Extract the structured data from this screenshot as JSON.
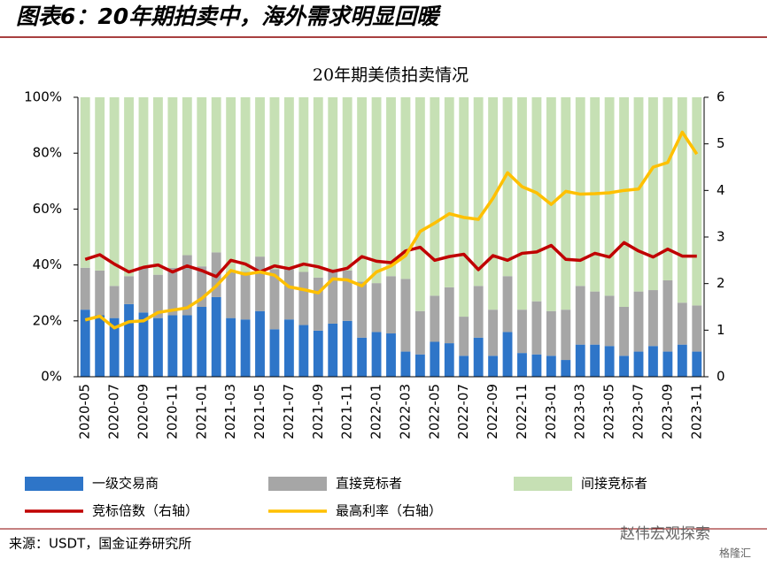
{
  "header": {
    "title": "图表6：20年期拍卖中，海外需求明显回暖"
  },
  "chart_data": {
    "type": "bar",
    "stacked": true,
    "title": "20年期美债拍卖情况",
    "categories": [
      "2020-05",
      null,
      "2020-07",
      null,
      "2020-09",
      null,
      "2020-11",
      null,
      "2021-01",
      null,
      "2021-03",
      null,
      "2021-05",
      null,
      "2021-07",
      null,
      "2021-09",
      null,
      "2021-11",
      null,
      "2022-01",
      null,
      "2022-03",
      null,
      "2022-05",
      null,
      "2022-07",
      null,
      "2022-09",
      null,
      "2022-11",
      null,
      "2023-01",
      null,
      "2023-03",
      null,
      "2023-05",
      null,
      "2023-07",
      null,
      "2023-09",
      null,
      "2023-11"
    ],
    "series": [
      {
        "name": "一级交易商",
        "color": "#2e75c8",
        "values": [
          24,
          22,
          21,
          26,
          23,
          21,
          22,
          22,
          25,
          28.5,
          21,
          20.5,
          23.5,
          17,
          20.5,
          18.5,
          16.5,
          19,
          20,
          14,
          16,
          15.5,
          9,
          8,
          12.5,
          12,
          7.5,
          14,
          7.5,
          16,
          8.5,
          8,
          7.5,
          6,
          11.5,
          11.5,
          11,
          7.5,
          9,
          11,
          9,
          11.5,
          9
        ]
      },
      {
        "name": "直接竞标者",
        "color": "#a6a6a6",
        "values": [
          15,
          16,
          11.5,
          10,
          16.5,
          15.5,
          17,
          21.5,
          14.5,
          16,
          16.5,
          17,
          19.5,
          21.5,
          18,
          19,
          19,
          19.5,
          18,
          20,
          17.5,
          20.5,
          26,
          15.5,
          16.5,
          20,
          14,
          18.5,
          16.5,
          20,
          15.5,
          19,
          16,
          18,
          21,
          19,
          18,
          17.5,
          21.5,
          20,
          25.5,
          15,
          16.5
        ]
      },
      {
        "name": "间接竞标者",
        "color": "#c6e0b4",
        "values": [
          61,
          62,
          67.5,
          64,
          60.5,
          63.5,
          61,
          56.5,
          60.5,
          55.5,
          62.5,
          62.5,
          57,
          61.5,
          61.5,
          62.5,
          64.5,
          61.5,
          62,
          66,
          66.5,
          64,
          65,
          76.5,
          71,
          68,
          78.5,
          67.5,
          76,
          64,
          76,
          73,
          76.5,
          76,
          67.5,
          69.5,
          71,
          75,
          69.5,
          69,
          65.5,
          73.5,
          74.5
        ]
      },
      {
        "name": "竞标倍数（右轴）",
        "type": "line",
        "axis": "y2",
        "color": "#c00000",
        "values": [
          2.52,
          2.62,
          2.42,
          2.25,
          2.35,
          2.4,
          2.25,
          2.38,
          2.28,
          2.15,
          2.5,
          2.42,
          2.25,
          2.38,
          2.32,
          2.42,
          2.36,
          2.26,
          2.33,
          2.58,
          2.48,
          2.45,
          2.7,
          2.78,
          2.5,
          2.58,
          2.63,
          2.3,
          2.6,
          2.5,
          2.65,
          2.68,
          2.82,
          2.52,
          2.5,
          2.65,
          2.57,
          2.88,
          2.7,
          2.57,
          2.74,
          2.59,
          2.59
        ]
      },
      {
        "name": "最高利率（右轴）",
        "type": "line",
        "axis": "y2",
        "color": "#ffc000",
        "values": [
          1.22,
          1.3,
          1.05,
          1.18,
          1.2,
          1.38,
          1.43,
          1.48,
          1.68,
          1.95,
          2.28,
          2.2,
          2.25,
          2.18,
          1.93,
          1.87,
          1.8,
          2.1,
          2.08,
          1.95,
          2.25,
          2.38,
          2.6,
          3.12,
          3.3,
          3.5,
          3.42,
          3.38,
          3.83,
          4.38,
          4.08,
          3.95,
          3.7,
          3.98,
          3.92,
          3.93,
          3.95,
          4.0,
          4.03,
          4.5,
          4.6,
          5.25,
          4.78
        ]
      }
    ],
    "ylim": [
      0,
      100
    ],
    "yticks": [
      {
        "value": 0,
        "label": "0%"
      },
      {
        "value": 20,
        "label": "20%"
      },
      {
        "value": 40,
        "label": "40%"
      },
      {
        "value": 60,
        "label": "60%"
      },
      {
        "value": 80,
        "label": "80%"
      },
      {
        "value": 100,
        "label": "100%"
      }
    ],
    "y2lim": [
      0,
      6
    ],
    "y2ticks": [
      0,
      1,
      2,
      3,
      4,
      5,
      6
    ]
  },
  "footer": {
    "source": "来源：USDT，国金证券研究所",
    "watermark": "赵伟宏观探索",
    "logo": "格隆汇"
  }
}
